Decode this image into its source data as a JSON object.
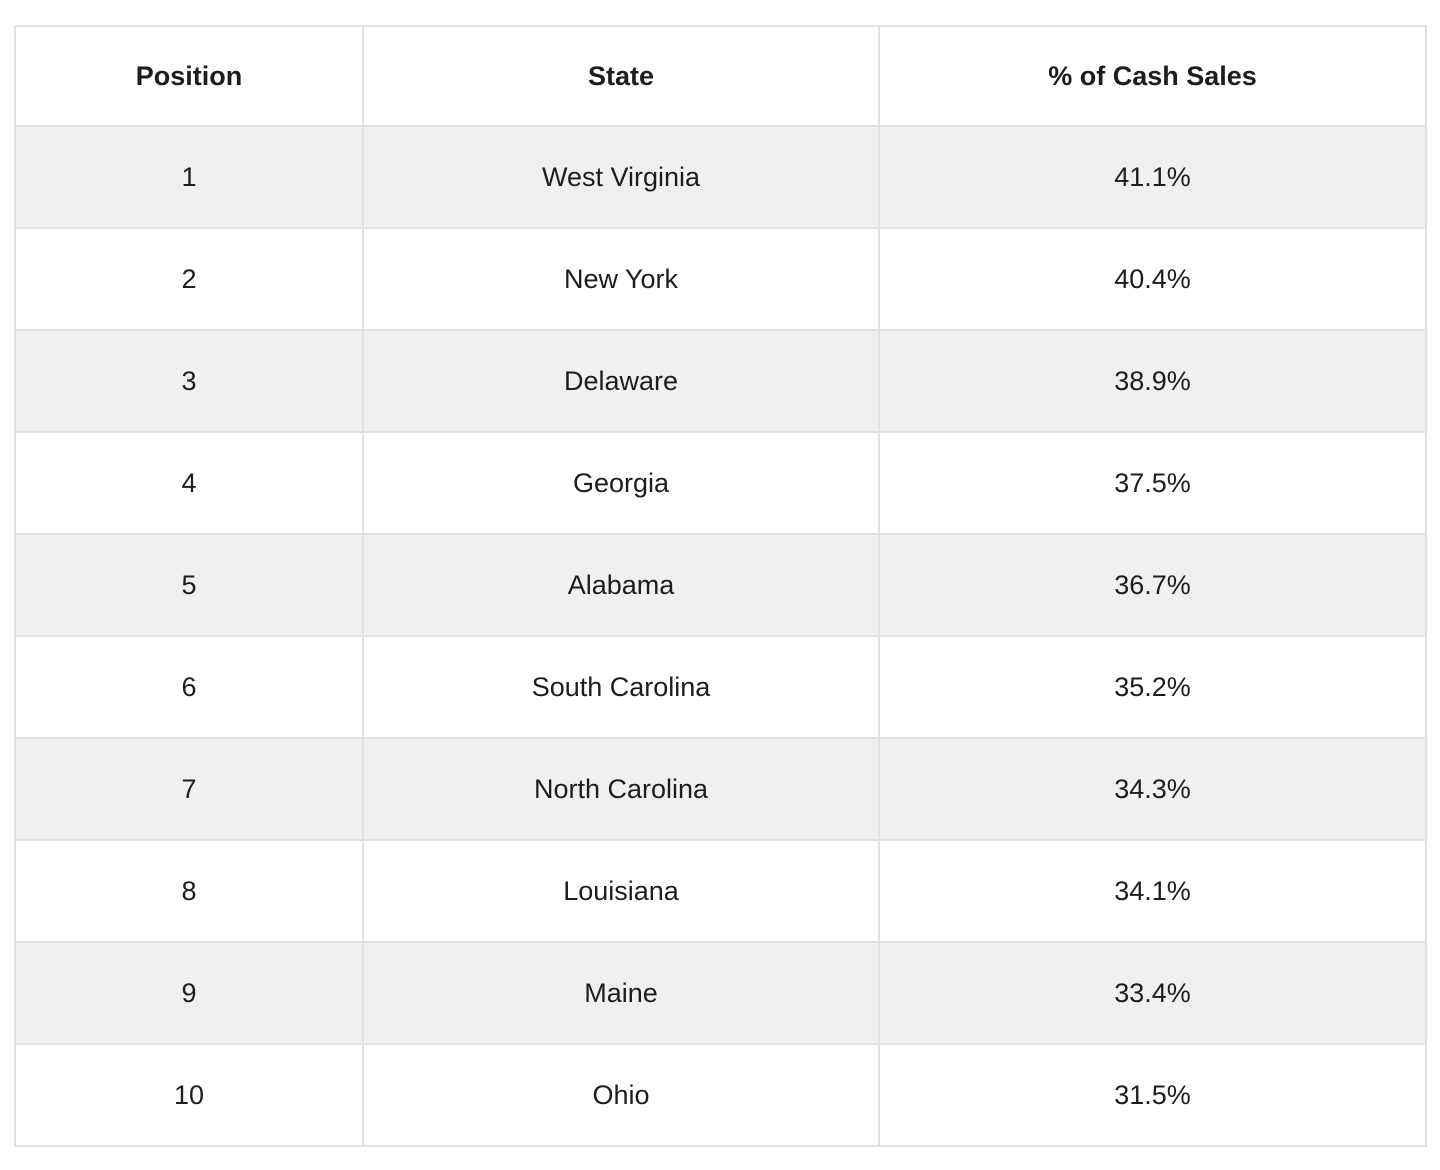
{
  "theme": {
    "stripe_color": "#f0f0f0",
    "border_color": "#e2e2e2",
    "text_color": "#1d1d1d",
    "background_color": "#ffffff"
  },
  "table": {
    "headers": [
      "Position",
      "State",
      "% of Cash Sales"
    ],
    "rows": [
      {
        "position": "1",
        "state": "West Virginia",
        "pct": "41.1%"
      },
      {
        "position": "2",
        "state": "New York",
        "pct": "40.4%"
      },
      {
        "position": "3",
        "state": "Delaware",
        "pct": "38.9%"
      },
      {
        "position": "4",
        "state": "Georgia",
        "pct": "37.5%"
      },
      {
        "position": "5",
        "state": "Alabama",
        "pct": "36.7%"
      },
      {
        "position": "6",
        "state": "South Carolina",
        "pct": "35.2%"
      },
      {
        "position": "7",
        "state": "North Carolina",
        "pct": "34.3%"
      },
      {
        "position": "8",
        "state": "Louisiana",
        "pct": "34.1%"
      },
      {
        "position": "9",
        "state": "Maine",
        "pct": "33.4%"
      },
      {
        "position": "10",
        "state": "Ohio",
        "pct": "31.5%"
      }
    ]
  },
  "chart_data": {
    "type": "table",
    "columns": [
      "Position",
      "State",
      "% of Cash Sales"
    ],
    "rows": [
      [
        1,
        "West Virginia",
        41.1
      ],
      [
        2,
        "New York",
        40.4
      ],
      [
        3,
        "Delaware",
        38.9
      ],
      [
        4,
        "Georgia",
        37.5
      ],
      [
        5,
        "Alabama",
        36.7
      ],
      [
        6,
        "South Carolina",
        35.2
      ],
      [
        7,
        "North Carolina",
        34.3
      ],
      [
        8,
        "Louisiana",
        34.1
      ],
      [
        9,
        "Maine",
        33.4
      ],
      [
        10,
        "Ohio",
        31.5
      ]
    ]
  }
}
